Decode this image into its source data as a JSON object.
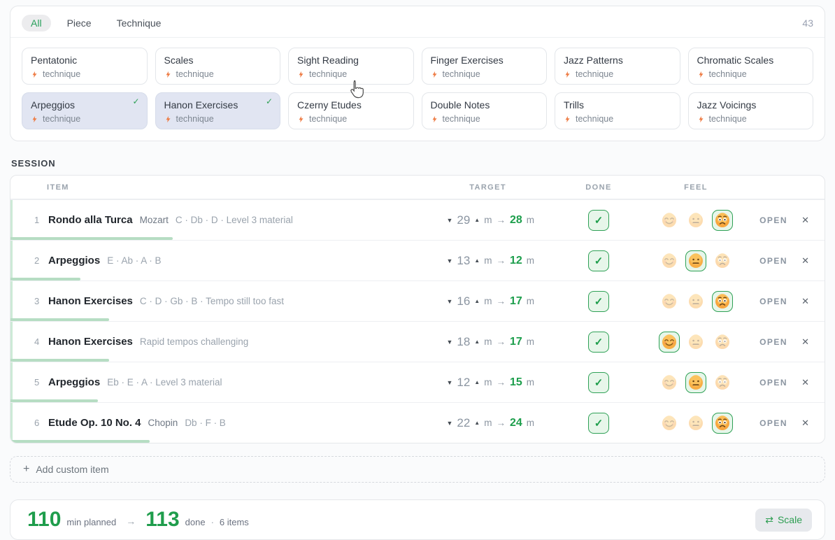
{
  "filter_bar": {
    "tabs": [
      {
        "label": "All",
        "active": true
      },
      {
        "label": "Piece",
        "active": false
      },
      {
        "label": "Technique",
        "active": false
      }
    ],
    "count": "43"
  },
  "library": {
    "tag_label": "technique",
    "chips": [
      {
        "name": "Pentatonic",
        "selected": false
      },
      {
        "name": "Scales",
        "selected": false
      },
      {
        "name": "Sight Reading",
        "selected": false
      },
      {
        "name": "Finger Exercises",
        "selected": false
      },
      {
        "name": "Jazz Patterns",
        "selected": false
      },
      {
        "name": "Chromatic Scales",
        "selected": false
      },
      {
        "name": "Arpeggios",
        "selected": true
      },
      {
        "name": "Hanon Exercises",
        "selected": true
      },
      {
        "name": "Czerny Etudes",
        "selected": false
      },
      {
        "name": "Double Notes",
        "selected": false
      },
      {
        "name": "Trills",
        "selected": false
      },
      {
        "name": "Jazz Voicings",
        "selected": false
      }
    ],
    "check_glyph": "✓",
    "bolt_icon": "lightning-bolt"
  },
  "session": {
    "heading": "SESSION",
    "columns": {
      "item": "ITEM",
      "target": "TARGET",
      "done": "DONE",
      "feel": "FEEL"
    },
    "glyphs": {
      "decrease": "▼",
      "increase": "▲",
      "unit": "m",
      "arrow": "→",
      "check": "✓",
      "open": "OPEN",
      "remove": "✕"
    },
    "feel_options": [
      "happy",
      "neutral",
      "worried"
    ],
    "items": [
      {
        "num": "1",
        "title": "Rondo alla Turca",
        "composer": "Mozart",
        "meta": "C · Db · D · Level 3 material",
        "target_min": "29",
        "done_min": 28,
        "done": true,
        "feel": "worried"
      },
      {
        "num": "2",
        "title": "Arpeggios",
        "composer": "",
        "meta": "E · Ab · A · B",
        "target_min": "13",
        "done_min": 12,
        "done": true,
        "feel": "neutral"
      },
      {
        "num": "3",
        "title": "Hanon Exercises",
        "composer": "",
        "meta": "C · D · Gb · B · Tempo still too fast",
        "target_min": "16",
        "done_min": 17,
        "done": true,
        "feel": "worried"
      },
      {
        "num": "4",
        "title": "Hanon Exercises",
        "composer": "",
        "meta": "Rapid tempos challenging",
        "target_min": "18",
        "done_min": 17,
        "done": true,
        "feel": "happy"
      },
      {
        "num": "5",
        "title": "Arpeggios",
        "composer": "",
        "meta": "Eb · E · A · Level 3 material",
        "target_min": "12",
        "done_min": 15,
        "done": true,
        "feel": "neutral"
      },
      {
        "num": "6",
        "title": "Etude Op. 10 No. 4",
        "composer": "Chopin",
        "meta": "Db · F · B",
        "target_min": "22",
        "done_min": 24,
        "done": true,
        "feel": "worried"
      }
    ],
    "add_item": {
      "plus": "+",
      "label": "Add custom item"
    }
  },
  "summary": {
    "planned": "110",
    "planned_label": "min planned",
    "arrow": "→",
    "done": "113",
    "done_label": "done",
    "divider": "·",
    "items": "6 items",
    "scale_icon": "⇄",
    "scale_label": "Scale"
  },
  "colors": {
    "accent_green": "#1f9e4c",
    "progress_green": "#b6ddc3",
    "selected_chip_bg": "#e1e5f2",
    "bolt_orange": "#ee7b43"
  }
}
